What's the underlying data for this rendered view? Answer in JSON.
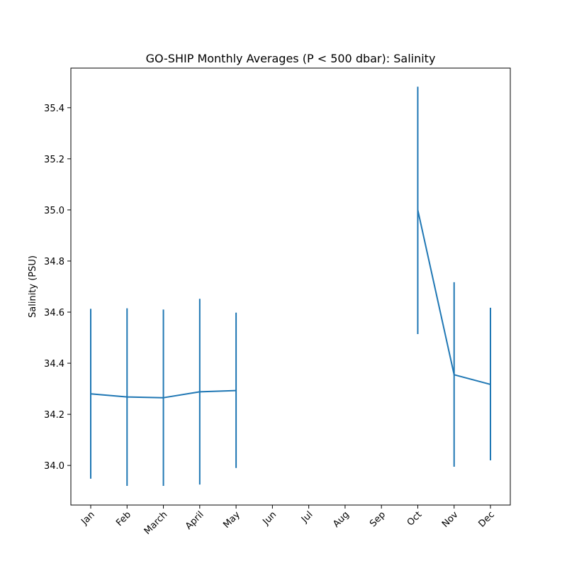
{
  "chart_data": {
    "type": "line",
    "title": "GO-SHIP Monthly Averages (P < 500 dbar): Salinity",
    "xlabel": "",
    "ylabel": "Salinity (PSU)",
    "categories": [
      "Jan",
      "Feb",
      "March",
      "April",
      "May",
      "Jun",
      "Jul",
      "Aug",
      "Sep",
      "Oct",
      "Nov",
      "Dec"
    ],
    "ylim": [
      33.845,
      35.555
    ],
    "yticks": [
      34.0,
      34.2,
      34.4,
      34.6,
      34.8,
      35.0,
      35.2,
      35.4
    ],
    "ytick_labels": [
      "34.0",
      "34.2",
      "34.4",
      "34.6",
      "34.8",
      "35.0",
      "35.2",
      "35.4"
    ],
    "grid": false,
    "series": [
      {
        "color": "#1f77b4",
        "values": [
          34.28,
          34.268,
          34.265,
          34.288,
          34.293,
          null,
          null,
          null,
          null,
          35.0,
          34.355,
          34.317
        ],
        "error_low": [
          33.948,
          33.92,
          33.92,
          33.925,
          33.99,
          null,
          null,
          null,
          null,
          34.514,
          33.995,
          34.02
        ],
        "error_high": [
          34.613,
          34.615,
          34.61,
          34.652,
          34.598,
          null,
          null,
          null,
          null,
          35.482,
          34.717,
          34.617
        ]
      }
    ]
  }
}
